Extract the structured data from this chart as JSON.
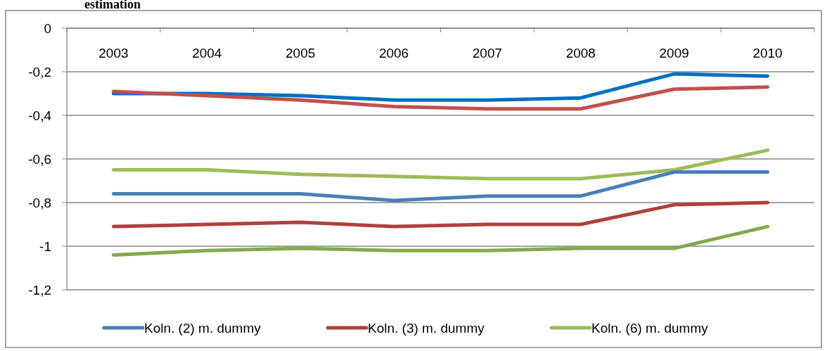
{
  "chart_data": {
    "type": "line",
    "title": "estimation",
    "categories": [
      "2003",
      "2004",
      "2005",
      "2006",
      "2007",
      "2008",
      "2009",
      "2010"
    ],
    "ylim": [
      -1.2,
      0
    ],
    "yticks": [
      {
        "value": 0,
        "label": "0"
      },
      {
        "value": -0.2,
        "label": "-0,2"
      },
      {
        "value": -0.4,
        "label": "-0,4"
      },
      {
        "value": -0.6,
        "label": "-0,6"
      },
      {
        "value": -0.8,
        "label": "-0,8"
      },
      {
        "value": -1,
        "label": "-1"
      },
      {
        "value": -1.2,
        "label": "-1,2"
      }
    ],
    "grid": "y",
    "legend": "bottom",
    "marker": "none",
    "line_style": "solid",
    "series": [
      {
        "color": "#0070c0",
        "values": [
          -0.3,
          -0.3,
          -0.31,
          -0.33,
          -0.33,
          -0.32,
          -0.21,
          -0.22
        ]
      },
      {
        "color": "#c0504d",
        "values": [
          -0.29,
          -0.31,
          -0.33,
          -0.36,
          -0.37,
          -0.37,
          -0.28,
          -0.27
        ]
      },
      {
        "name": "Koln. (6) m. dummy",
        "color": "#9bbb59",
        "values": [
          -0.65,
          -0.65,
          -0.67,
          -0.68,
          -0.69,
          -0.69,
          -0.65,
          -0.56
        ]
      },
      {
        "name": "Koln. (2) m. dummy",
        "color": "#4a7ebb",
        "values": [
          -0.76,
          -0.76,
          -0.76,
          -0.79,
          -0.77,
          -0.77,
          -0.66,
          -0.66
        ]
      },
      {
        "name": "Koln. (3) m. dummy",
        "color": "#b0403d",
        "values": [
          -0.91,
          -0.9,
          -0.89,
          -0.91,
          -0.9,
          -0.9,
          -0.81,
          -0.8
        ]
      },
      {
        "color": "#84a84b",
        "values": [
          -1.04,
          -1.02,
          -1.01,
          -1.02,
          -1.02,
          -1.01,
          -1.01,
          -0.91
        ]
      }
    ]
  }
}
